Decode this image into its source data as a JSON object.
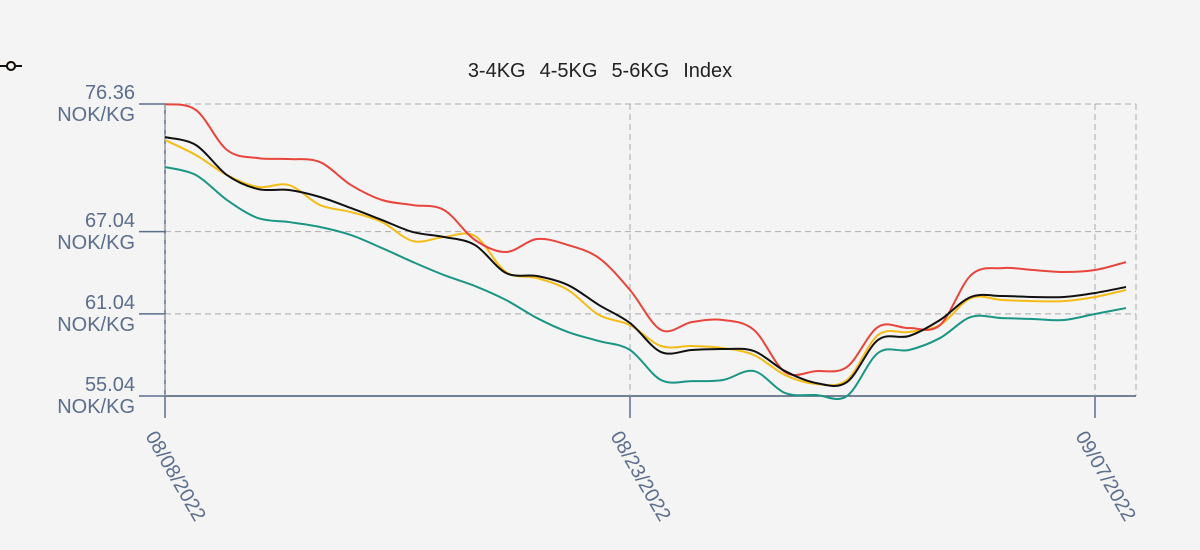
{
  "chart_data": {
    "type": "line",
    "x": [
      "08/08/2022",
      "08/09/2022",
      "08/10/2022",
      "08/11/2022",
      "08/12/2022",
      "08/13/2022",
      "08/14/2022",
      "08/15/2022",
      "08/16/2022",
      "08/17/2022",
      "08/18/2022",
      "08/19/2022",
      "08/20/2022",
      "08/21/2022",
      "08/22/2022",
      "08/23/2022",
      "08/24/2022",
      "08/25/2022",
      "08/26/2022",
      "08/27/2022",
      "08/28/2022",
      "08/29/2022",
      "08/30/2022",
      "08/31/2022",
      "09/01/2022",
      "09/02/2022",
      "09/03/2022",
      "09/04/2022",
      "09/05/2022",
      "09/06/2022",
      "09/07/2022",
      "09/08/2022"
    ],
    "series": [
      {
        "name": "3-4KG",
        "color": "#1a9685",
        "values": [
          71.76,
          71.17,
          69.35,
          68.03,
          67.74,
          67.38,
          66.79,
          65.84,
          64.82,
          63.87,
          63.07,
          62.05,
          60.73,
          59.71,
          59.05,
          58.4,
          56.21,
          56.13,
          56.21,
          56.86,
          55.26,
          55.11,
          55.04,
          58.18,
          58.4,
          59.27,
          60.81,
          60.73,
          60.66,
          60.59,
          61.03,
          61.46
        ]
      },
      {
        "name": "4-5KG",
        "color": "#f5bc17",
        "values": [
          73.73,
          72.63,
          71.17,
          70.3,
          70.44,
          68.98,
          68.47,
          67.74,
          66.35,
          66.65,
          66.72,
          64.09,
          63.65,
          62.78,
          60.95,
          60.22,
          58.69,
          58.69,
          58.54,
          58.03,
          56.57,
          55.92,
          56.21,
          59.49,
          59.71,
          60.22,
          62.19,
          62.05,
          61.97,
          61.97,
          62.27,
          62.78
        ]
      },
      {
        "name": "5-6KG",
        "color": "#e8453c",
        "values": [
          76.35,
          75.92,
          73.0,
          72.41,
          72.34,
          72.12,
          70.44,
          69.35,
          68.98,
          68.62,
          66.43,
          65.55,
          66.5,
          66.06,
          65.11,
          62.78,
          59.86,
          60.44,
          60.59,
          59.86,
          56.79,
          56.86,
          57.16,
          60.08,
          60.0,
          60.22,
          63.87,
          64.38,
          64.24,
          64.09,
          64.24,
          64.82
        ]
      },
      {
        "name": "Index",
        "color": "#111111",
        "values": [
          73.94,
          73.36,
          71.17,
          70.15,
          70.08,
          69.57,
          68.76,
          67.89,
          67.01,
          66.65,
          66.06,
          64.02,
          63.8,
          63.14,
          61.68,
          60.37,
          58.25,
          58.4,
          58.47,
          58.32,
          56.86,
          55.99,
          56.06,
          59.13,
          59.42,
          60.59,
          62.27,
          62.34,
          62.27,
          62.27,
          62.56,
          63.0
        ]
      }
    ],
    "xlim": [
      "08/08/2022",
      "09/08/2022"
    ],
    "xticks": [
      "08/08/2022",
      "08/23/2022",
      "09/07/2022"
    ],
    "ylim": [
      55.04,
      76.36
    ],
    "yticks": [
      {
        "value": 55.04,
        "label": "55.04 NOK/KG"
      },
      {
        "value": 61.04,
        "label": "61.04 NOK/KG"
      },
      {
        "value": 67.04,
        "label": "67.04 NOK/KG"
      },
      {
        "value": 76.36,
        "label": "76.36 NOK/KG"
      }
    ],
    "grid": true,
    "legend": "top"
  }
}
